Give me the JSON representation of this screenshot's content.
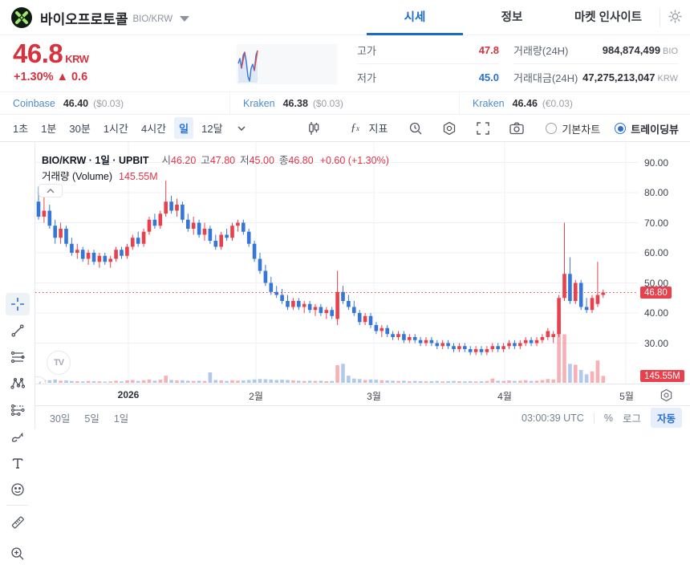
{
  "header": {
    "title": "바이오프로토콜",
    "pair": "BIO/KRW",
    "tabs": [
      {
        "label": "시세",
        "active": true
      },
      {
        "label": "정보",
        "active": false
      },
      {
        "label": "마켓 인사이트",
        "active": false
      }
    ],
    "icons": [
      "token-logo",
      "caret-down",
      "gear"
    ]
  },
  "price": {
    "value": "46.8",
    "currency": "KRW",
    "change": "+1.30% ▲ 0.6"
  },
  "stats": {
    "high_label": "고가",
    "high": "47.8",
    "low_label": "저가",
    "low": "45.0",
    "volume_label": "거래량(24H)",
    "volume": "984,874,499",
    "volume_unit": "BIO",
    "amount_label": "거래대금(24H)",
    "amount": "47,275,213,047",
    "amount_unit": "KRW"
  },
  "exchanges": [
    {
      "name": "Coinbase",
      "price": "46.40",
      "diff": "($0.03)"
    },
    {
      "name": "Kraken",
      "price": "46.38",
      "diff": "($0.03)"
    },
    {
      "name": "Kraken",
      "price": "46.46",
      "diff": "(€0.03)"
    }
  ],
  "toolbar": {
    "intervals": [
      "1초",
      "1분",
      "30분",
      "1시간",
      "4시간",
      "일",
      "12달"
    ],
    "selected_interval": "일",
    "fx_label": "ƒ",
    "indicator_label": "지표",
    "icons": [
      "interval-caret-down",
      "candle-style",
      "fx-indicator",
      "indicator-template",
      "chart-settings-hexagon",
      "fullscreen",
      "camera-snapshot"
    ],
    "radios": [
      {
        "label": "기본차트",
        "selected": false
      },
      {
        "label": "트레이딩뷰",
        "selected": true
      }
    ]
  },
  "sidebar": {
    "tools": [
      "crosshair",
      "trend-line",
      "fib-retracement",
      "xabcd-pattern",
      "forecast",
      "brush",
      "text",
      "emoji",
      "ruler",
      "zoom-in"
    ]
  },
  "legend": {
    "symbol": "BIO/KRW · 1일 · UPBIT",
    "o_label": "시",
    "o": "46.20",
    "h_label": "고",
    "h": "47.80",
    "l_label": "저",
    "l": "45.00",
    "c_label": "종",
    "c": "46.80",
    "change": "+0.60 (+1.30%)",
    "volume_label": "거래량 (Volume)",
    "volume_value": "145.55M",
    "collapse_glyph": "︿",
    "tv_logo": "TV"
  },
  "axis": {
    "y_labels": [
      "90.00",
      "80.00",
      "70.00",
      "60.00",
      "50.00",
      "40.00",
      "30.00"
    ],
    "x_labels": [
      "2026",
      "2월",
      "3월",
      "4월",
      "5월"
    ],
    "price_badge": "46.80",
    "volume_badge": "145.55M"
  },
  "bottom": {
    "ranges": [
      "30일",
      "5일",
      "1일"
    ],
    "clock": "03:00:39 UTC",
    "scale_percent": "%",
    "scale_log": "로그",
    "scale_auto": "자동"
  },
  "colors": {
    "up": "#e8414d",
    "down": "#3476d9",
    "up_volume": "rgba(234,80,94,0.45)",
    "down_volume": "rgba(60,120,216,0.4)",
    "accent_red": "#d6333f",
    "accent_blue": "#2b6fd4",
    "tab_blue": "#1a6cc4",
    "link_blue": "#4f8ac9",
    "grid": "#eef1f5",
    "price_line": "#e8414d",
    "logo_green": "#9fe870"
  },
  "sparkline": {
    "points": [
      [
        2,
        24
      ],
      [
        4,
        18
      ],
      [
        6,
        30
      ],
      [
        8,
        14
      ],
      [
        10,
        10
      ],
      [
        12,
        22
      ],
      [
        14,
        40
      ],
      [
        16,
        46
      ],
      [
        18,
        30
      ],
      [
        20,
        25
      ],
      [
        22,
        33
      ],
      [
        24,
        14
      ],
      [
        26,
        8
      ]
    ],
    "red_segments": [
      [
        6,
        30,
        10,
        10
      ],
      [
        22,
        33,
        26,
        8
      ]
    ]
  },
  "chart_data": {
    "type": "candlestick",
    "symbol": "BIO/KRW",
    "interval": "1일",
    "exchange": "UPBIT",
    "title": "BIO/KRW · 1일 · UPBIT",
    "last": {
      "open": 46.2,
      "high": 47.8,
      "low": 45.0,
      "close": 46.8,
      "change": "+0.60 (+1.30%)",
      "volume": "145.55M"
    },
    "y_range": [
      20,
      95
    ],
    "y_ticks": [
      90,
      80,
      70,
      60,
      50,
      40,
      30
    ],
    "x_tick_labels": [
      "2026",
      "2월",
      "3월",
      "4월",
      "5월"
    ],
    "current_price": 46.8,
    "volume_unit": "M",
    "volume_max_scale": 1350,
    "candles_format": [
      "open",
      "high",
      "low",
      "close",
      "volume_millions"
    ],
    "candles": [
      [
        77,
        82,
        71,
        72,
        90
      ],
      [
        72,
        80,
        70,
        74,
        60
      ],
      [
        74,
        76,
        68,
        69,
        55
      ],
      [
        69,
        71,
        63,
        65,
        70
      ],
      [
        65,
        70,
        63,
        68,
        45
      ],
      [
        68,
        69,
        62,
        63,
        50
      ],
      [
        63,
        65,
        59,
        60,
        40
      ],
      [
        60,
        63,
        58,
        61,
        35
      ],
      [
        61,
        62,
        57,
        58,
        30
      ],
      [
        58,
        61,
        56,
        60,
        40
      ],
      [
        60,
        61,
        56,
        57,
        35
      ],
      [
        57,
        60,
        55,
        59,
        30
      ],
      [
        59,
        60,
        56,
        57,
        25
      ],
      [
        57,
        59,
        55,
        58,
        30
      ],
      [
        58,
        62,
        57,
        61,
        45
      ],
      [
        61,
        62,
        58,
        59,
        30
      ],
      [
        59,
        63,
        58,
        62,
        50
      ],
      [
        62,
        66,
        61,
        65,
        60
      ],
      [
        65,
        67,
        62,
        63,
        40
      ],
      [
        63,
        68,
        62,
        67,
        55
      ],
      [
        67,
        72,
        66,
        71,
        70
      ],
      [
        71,
        73,
        68,
        69,
        45
      ],
      [
        69,
        74,
        68,
        73,
        65
      ],
      [
        73,
        84,
        72,
        77,
        150
      ],
      [
        77,
        79,
        73,
        74,
        60
      ],
      [
        74,
        78,
        72,
        76,
        50
      ],
      [
        76,
        77,
        70,
        71,
        55
      ],
      [
        71,
        73,
        67,
        68,
        45
      ],
      [
        68,
        72,
        66,
        70,
        40
      ],
      [
        70,
        71,
        65,
        66,
        45
      ],
      [
        66,
        70,
        64,
        68,
        40
      ],
      [
        68,
        69,
        63,
        64,
        220
      ],
      [
        64,
        66,
        61,
        62,
        60
      ],
      [
        62,
        67,
        61,
        66,
        50
      ],
      [
        66,
        68,
        64,
        65,
        40
      ],
      [
        65,
        70,
        64,
        69,
        55
      ],
      [
        69,
        71,
        67,
        70,
        45
      ],
      [
        70,
        71,
        66,
        67,
        50
      ],
      [
        67,
        68,
        62,
        63,
        60
      ],
      [
        63,
        64,
        57,
        58,
        70
      ],
      [
        58,
        60,
        53,
        54,
        80
      ],
      [
        54,
        56,
        49,
        50,
        75
      ],
      [
        50,
        52,
        46,
        47,
        70
      ],
      [
        47,
        49,
        45,
        46,
        60
      ],
      [
        46,
        48,
        43,
        44,
        65
      ],
      [
        44,
        46,
        41,
        42,
        60
      ],
      [
        42,
        45,
        41,
        44,
        50
      ],
      [
        44,
        45,
        41,
        42,
        45
      ],
      [
        42,
        44,
        40,
        43,
        40
      ],
      [
        43,
        44,
        40,
        41,
        45
      ],
      [
        41,
        43,
        39,
        42,
        40
      ],
      [
        42,
        43,
        39,
        40,
        45
      ],
      [
        40,
        42,
        38,
        41,
        35
      ],
      [
        41,
        42,
        38,
        39,
        40
      ],
      [
        38,
        54,
        36,
        47,
        370
      ],
      [
        47,
        49,
        43,
        44,
        400
      ],
      [
        44,
        46,
        41,
        42,
        150
      ],
      [
        42,
        44,
        39,
        40,
        90
      ],
      [
        40,
        41,
        36,
        37,
        80
      ],
      [
        37,
        40,
        36,
        39,
        60
      ],
      [
        39,
        40,
        35,
        36,
        70
      ],
      [
        36,
        37,
        33,
        34,
        65
      ],
      [
        34,
        36,
        32,
        35,
        55
      ],
      [
        35,
        36,
        32,
        33,
        50
      ],
      [
        33,
        34,
        31,
        32,
        45
      ],
      [
        32,
        34,
        31,
        33,
        40
      ],
      [
        33,
        34,
        30,
        31,
        45
      ],
      [
        31,
        33,
        30,
        32,
        35
      ],
      [
        32,
        33,
        30,
        31,
        40
      ],
      [
        31,
        32,
        29,
        30,
        35
      ],
      [
        30,
        32,
        29,
        31,
        30
      ],
      [
        31,
        32,
        29,
        30,
        35
      ],
      [
        30,
        31,
        28,
        29,
        40
      ],
      [
        29,
        31,
        28,
        30,
        30
      ],
      [
        30,
        31,
        28,
        29,
        35
      ],
      [
        29,
        30,
        27,
        28,
        40
      ],
      [
        28,
        30,
        27,
        29,
        35
      ],
      [
        29,
        30,
        27,
        28,
        30
      ],
      [
        28,
        29,
        26,
        27,
        35
      ],
      [
        27,
        29,
        26,
        28,
        30
      ],
      [
        28,
        29,
        26,
        27,
        35
      ],
      [
        27,
        29,
        26,
        28,
        40
      ],
      [
        28,
        30,
        27,
        29,
        90
      ],
      [
        29,
        30,
        27,
        28,
        45
      ],
      [
        28,
        30,
        27,
        29,
        40
      ],
      [
        29,
        31,
        28,
        30,
        50
      ],
      [
        30,
        31,
        28,
        29,
        40
      ],
      [
        29,
        31,
        28,
        30,
        45
      ],
      [
        30,
        32,
        29,
        31,
        55
      ],
      [
        31,
        32,
        29,
        30,
        40
      ],
      [
        30,
        32,
        29,
        31,
        45
      ],
      [
        31,
        33,
        30,
        32,
        60
      ],
      [
        32,
        35,
        31,
        34,
        80
      ],
      [
        32,
        34,
        30,
        33,
        70
      ],
      [
        33,
        46,
        32,
        45,
        1347
      ],
      [
        45,
        70,
        44,
        53,
        1020
      ],
      [
        53,
        58.5,
        43,
        44,
        400
      ],
      [
        44,
        51,
        43,
        50,
        380
      ],
      [
        50,
        51,
        41,
        42,
        270
      ],
      [
        42,
        45,
        40,
        41,
        180
      ],
      [
        41,
        46,
        40,
        45,
        240
      ],
      [
        43,
        57,
        42,
        46,
        470
      ],
      [
        46,
        47.8,
        45,
        46.8,
        145.55
      ]
    ]
  }
}
